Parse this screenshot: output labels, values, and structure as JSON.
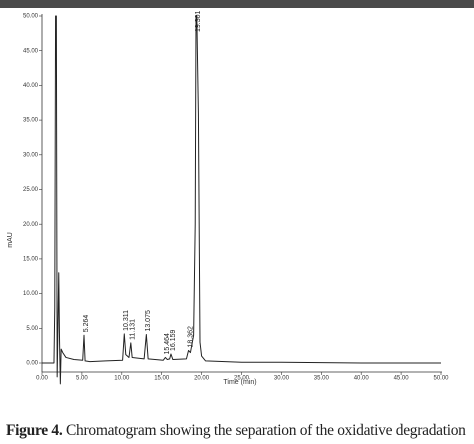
{
  "chart_data": {
    "type": "line",
    "ylabel": "mAU",
    "xlabel": "Time (min)",
    "x": [
      0,
      1.5,
      1.6,
      1.7,
      1.8,
      1.9,
      2.0,
      2.1,
      2.2,
      2.3,
      2.4,
      2.6,
      3.0,
      4.0,
      5.1,
      5.264,
      5.4,
      6,
      8,
      10.1,
      10.311,
      10.5,
      10.9,
      11.131,
      11.3,
      12.8,
      13.075,
      13.3,
      15.2,
      15.464,
      15.7,
      16.0,
      16.159,
      16.4,
      18.1,
      18.362,
      18.6,
      19.0,
      19.2,
      19.301,
      19.4,
      19.6,
      19.8,
      20.0,
      20.5,
      25,
      30,
      40,
      50
    ],
    "values": [
      0,
      0,
      8,
      50,
      50,
      -2,
      5,
      13,
      3,
      -3,
      2,
      1.5,
      0.8,
      0.5,
      0.4,
      4,
      0.3,
      0.2,
      0.3,
      0.4,
      4.2,
      1.2,
      0.8,
      2.9,
      0.8,
      0.6,
      4.1,
      0.6,
      0.4,
      0.8,
      0.5,
      0.6,
      1.3,
      0.5,
      0.6,
      1.8,
      1.5,
      4,
      20,
      50,
      50,
      36,
      3,
      1,
      0.3,
      0.1,
      0.1,
      0,
      0
    ],
    "color": "#222222",
    "peak_labels": [
      5.264,
      10.311,
      11.131,
      13.075,
      15.464,
      16.159,
      18.362,
      19.301
    ],
    "xlim": [
      0,
      50
    ],
    "xticks": [
      {
        "value": 0,
        "label": "0.00"
      },
      {
        "value": 5,
        "label": "5.00"
      },
      {
        "value": 10,
        "label": "10.00"
      },
      {
        "value": 15,
        "label": "15.00"
      },
      {
        "value": 20,
        "label": "20.00"
      },
      {
        "value": 25,
        "label": "25.00"
      },
      {
        "value": 30,
        "label": "30.00"
      },
      {
        "value": 35,
        "label": "35.00"
      },
      {
        "value": 40,
        "label": "40.00"
      },
      {
        "value": 45,
        "label": "45.00"
      },
      {
        "value": 50,
        "label": "50.00"
      }
    ],
    "ylim": [
      -1.3,
      50
    ],
    "yticks": [
      {
        "value": 0,
        "label": "0.00"
      },
      {
        "value": 5,
        "label": "5.00"
      },
      {
        "value": 10,
        "label": "10.00"
      },
      {
        "value": 15,
        "label": "15.00"
      },
      {
        "value": 20,
        "label": "20.00"
      },
      {
        "value": 25,
        "label": "25.00"
      },
      {
        "value": 30,
        "label": "30.00"
      },
      {
        "value": 35,
        "label": "35.00"
      },
      {
        "value": 40,
        "label": "40.00"
      },
      {
        "value": 45,
        "label": "45.00"
      },
      {
        "value": 50,
        "label": "50.00"
      }
    ],
    "caption_label": "Figure 4.",
    "caption": "Chromatogram showing the separation of the oxidative degradation"
  }
}
